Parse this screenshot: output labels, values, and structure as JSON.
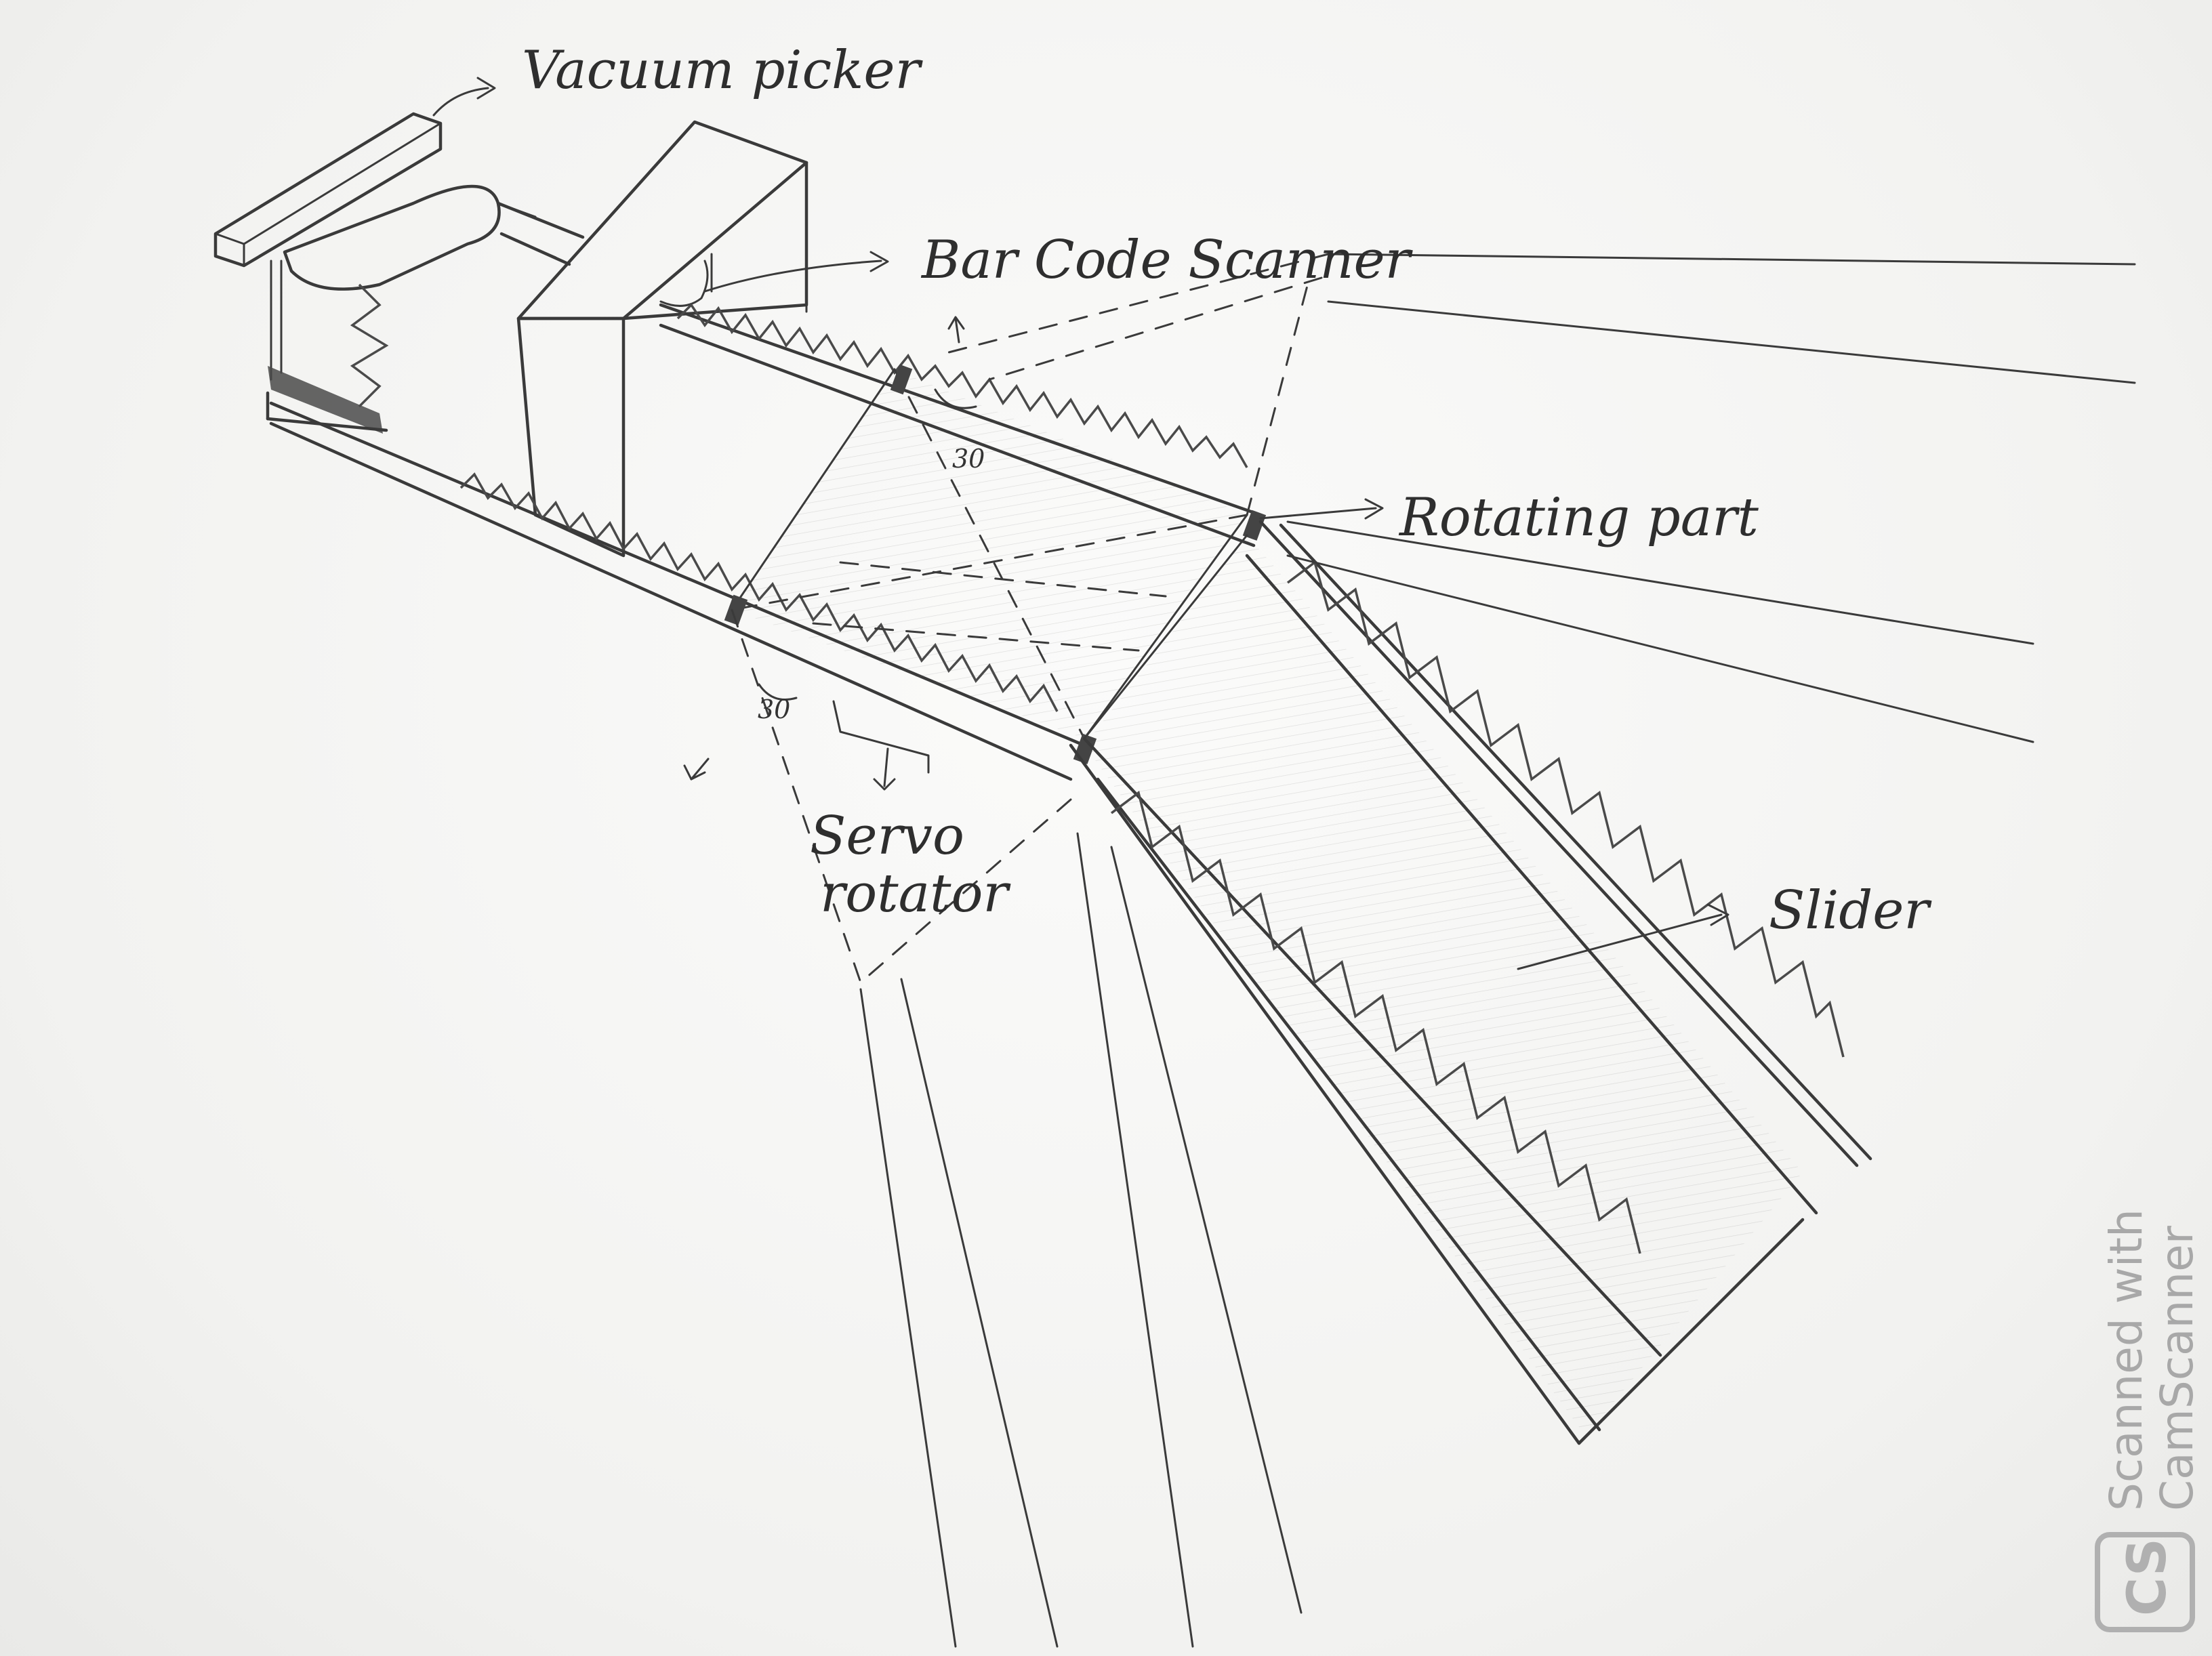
{
  "labels": {
    "vacuum_picker": "Vacuum picker",
    "bar_code_scanner": "Bar Code Scanner",
    "rotating_part": "Rotating part",
    "slider": "Slider",
    "servo_line1": "Servo",
    "servo_line2": "rotator",
    "angle_upper": "30",
    "angle_lower": "30"
  },
  "watermark": {
    "line1": "Scanned with",
    "line2": "CamScanner",
    "logo": "CS"
  },
  "colors": {
    "ink": "#3a3a3a",
    "paper": "#f4f4f2",
    "watermark": "#a8a8a8"
  }
}
